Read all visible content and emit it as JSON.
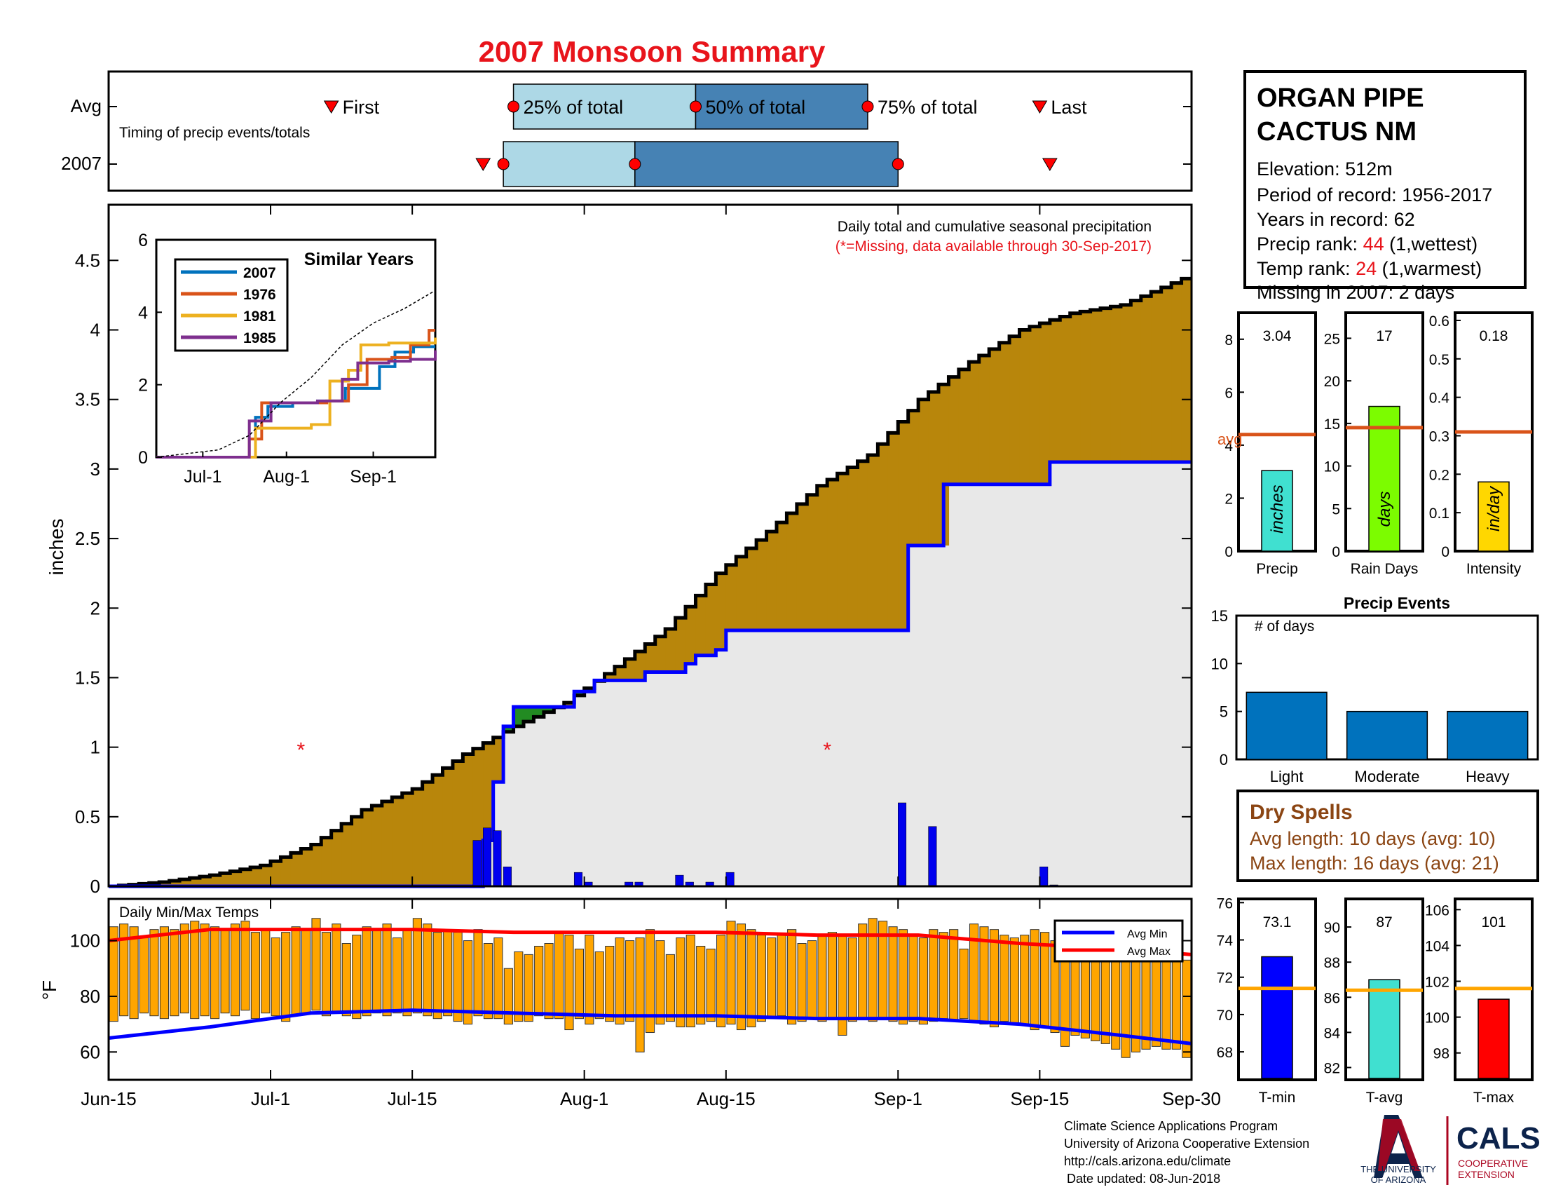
{
  "page": {
    "title": "2007 Monsoon Summary"
  },
  "timing_panel": {
    "row_avg_label": "Avg",
    "row_year_label": "2007",
    "subtitle": "Timing of precip events/totals",
    "markers_avg": {
      "first": "First",
      "p25": "25% of total",
      "p50": "50% of total",
      "p75": "75% of total",
      "last": "Last"
    },
    "x_range_days": [
      0,
      107
    ],
    "avg": {
      "first": 22,
      "p25": 40,
      "p50": 58,
      "p75": 75,
      "last": 92
    },
    "year": {
      "first": 37,
      "p25": 39,
      "p50": 52,
      "p75": 78,
      "last": 93
    }
  },
  "station": {
    "name_line1": "ORGAN PIPE",
    "name_line2": "CACTUS NM",
    "elevation": "Elevation: 512m",
    "period": "Period of record: 1956-2017",
    "years": "Years in record: 62",
    "precip_rank_label": "Precip rank: ",
    "precip_rank_value": "44",
    "precip_rank_note": " (1,wettest)",
    "temp_rank_label": "Temp rank: ",
    "temp_rank_value": "24",
    "temp_rank_note": " (1,warmest)",
    "missing": "Missing in 2007: 2 days"
  },
  "main_chart": {
    "title_line1": "Daily total and cumulative seasonal precipitation",
    "title_line2": "(*=Missing, data available through 30-Sep-2017)",
    "ylabel": "inches",
    "ylim": [
      0,
      4.9
    ],
    "yticks": [
      "0",
      "0.5",
      "1",
      "1.5",
      "2",
      "2.5",
      "3",
      "3.5",
      "4",
      "4.5"
    ],
    "missing_marker": "*"
  },
  "inset": {
    "title": "Similar Years",
    "yticks": [
      "0",
      "2",
      "4",
      "6"
    ],
    "xticks": [
      "Jul-1",
      "Aug-1",
      "Sep-1"
    ],
    "legend": [
      "2007",
      "1976",
      "1981",
      "1985"
    ],
    "colors": [
      "#0072BD",
      "#D95319",
      "#EDB120",
      "#7E2F8E"
    ]
  },
  "temp_chart": {
    "title": "Daily Min/Max Temps",
    "ylabel": "°F",
    "yticks": [
      "60",
      "80",
      "100"
    ],
    "legend_min": "Avg Min",
    "legend_max": "Avg Max"
  },
  "x_axis": {
    "ticks": [
      "Jun-15",
      "Jul-1",
      "Jul-15",
      "Aug-1",
      "Aug-15",
      "Sep-1",
      "Sep-15",
      "Sep-30"
    ]
  },
  "summary_bars": {
    "precip": {
      "label": "Precip",
      "value": "3.04",
      "unit": "inches",
      "avg": 4.4,
      "ylim": [
        0,
        9
      ],
      "yticks": [
        "0",
        "2",
        "4",
        "6",
        "8"
      ],
      "avg_label": "avg",
      "color": "#40E0D0"
    },
    "rain_days": {
      "label": "Rain Days",
      "value": "17",
      "unit": "days",
      "avg": 14.5,
      "ylim": [
        0,
        28
      ],
      "yticks": [
        "0",
        "5",
        "10",
        "15",
        "20",
        "25"
      ],
      "color": "#7CFC00"
    },
    "intensity": {
      "label": "Intensity",
      "value": "0.18",
      "unit": "in/day",
      "avg": 0.31,
      "ylim": [
        0,
        0.62
      ],
      "yticks": [
        "0",
        "0.1",
        "0.2",
        "0.3",
        "0.4",
        "0.5",
        "0.6"
      ],
      "color": "#FFD700"
    }
  },
  "precip_events": {
    "title": "Precip Events",
    "ylabel": "# of days",
    "categories": [
      "Light",
      "Moderate",
      "Heavy"
    ],
    "values": [
      7,
      5,
      5
    ],
    "yticks": [
      "0",
      "5",
      "10",
      "15"
    ]
  },
  "dry_spells": {
    "title": "Dry Spells",
    "avg_length": "Avg length: 10 days (avg: 10)",
    "max_length": "Max length: 16 days (avg: 21)"
  },
  "temp_bars": {
    "tmin": {
      "label": "T-min",
      "value": "73.1",
      "avg": 71.4,
      "ylim": [
        66.5,
        76.2
      ],
      "yticks": [
        "68",
        "70",
        "72",
        "74",
        "76"
      ],
      "color": "#0000FF"
    },
    "tavg": {
      "label": "T-avg",
      "value": "87",
      "avg": 86.4,
      "ylim": [
        81.3,
        91.6
      ],
      "yticks": [
        "82",
        "84",
        "86",
        "88",
        "90"
      ],
      "color": "#40E0D0"
    },
    "tmax": {
      "label": "T-max",
      "value": "101",
      "avg": 101.6,
      "ylim": [
        96.5,
        106.6
      ],
      "yticks": [
        "98",
        "100",
        "102",
        "104",
        "106"
      ],
      "color": "#FF0000"
    }
  },
  "footer": {
    "line1": "Climate Science Applications Program",
    "line2": "University of Arizona Cooperative Extension",
    "line3": "http://cals.arizona.edu/climate",
    "line4": "Date updated: 08-Jun-2018",
    "ua_logo_text1": "THE UNIVERSITY",
    "ua_logo_text2": "OF ARIZONA",
    "cals_logo": "CALS",
    "cals_sub1": "COOPERATIVE",
    "cals_sub2": "EXTENSION"
  },
  "chart_data": [
    {
      "type": "area",
      "name": "cumulative_precip",
      "x_unit": "days since Jun-15",
      "xlim": [
        0,
        107
      ],
      "ylim": [
        0,
        4.9
      ],
      "current_year_cumulative": [
        [
          0,
          0
        ],
        [
          16,
          0
        ],
        [
          36,
          0
        ],
        [
          37,
          0.33
        ],
        [
          38,
          0.75
        ],
        [
          39,
          1.15
        ],
        [
          40,
          1.29
        ],
        [
          45,
          1.29
        ],
        [
          46,
          1.4
        ],
        [
          48,
          1.48
        ],
        [
          52,
          1.48
        ],
        [
          53,
          1.54
        ],
        [
          56,
          1.54
        ],
        [
          57,
          1.6
        ],
        [
          58,
          1.66
        ],
        [
          60,
          1.7
        ],
        [
          61,
          1.84
        ],
        [
          78,
          1.84
        ],
        [
          79,
          2.45
        ],
        [
          82,
          2.45
        ],
        [
          82.5,
          2.89
        ],
        [
          92,
          2.89
        ],
        [
          93,
          3.05
        ],
        [
          107,
          3.05
        ]
      ],
      "average_cumulative": [
        [
          0,
          0
        ],
        [
          5,
          0.03
        ],
        [
          10,
          0.08
        ],
        [
          15,
          0.15
        ],
        [
          20,
          0.3
        ],
        [
          25,
          0.55
        ],
        [
          30,
          0.7
        ],
        [
          35,
          0.95
        ],
        [
          40,
          1.15
        ],
        [
          45,
          1.32
        ],
        [
          50,
          1.58
        ],
        [
          55,
          1.85
        ],
        [
          60,
          2.25
        ],
        [
          65,
          2.55
        ],
        [
          70,
          2.88
        ],
        [
          75,
          3.1
        ],
        [
          80,
          3.5
        ],
        [
          85,
          3.77
        ],
        [
          90,
          4.0
        ],
        [
          95,
          4.12
        ],
        [
          100,
          4.18
        ],
        [
          107,
          4.4
        ]
      ],
      "daily_precip": [
        [
          36,
          0.33
        ],
        [
          37,
          0.42
        ],
        [
          38,
          0.4
        ],
        [
          39,
          0.14
        ],
        [
          46,
          0.1
        ],
        [
          47,
          0.03
        ],
        [
          51,
          0.03
        ],
        [
          52,
          0.03
        ],
        [
          56,
          0.08
        ],
        [
          57,
          0.03
        ],
        [
          59,
          0.03
        ],
        [
          61,
          0.1
        ],
        [
          78,
          0.6
        ],
        [
          81,
          0.43
        ],
        [
          92,
          0.14
        ],
        [
          93,
          0.01
        ]
      ],
      "missing_days": [
        [
          19,
          1.0
        ],
        [
          71,
          1.0
        ]
      ],
      "colors": {
        "above_avg_fill": "#B8860B",
        "below_avg_fill": "#228B22",
        "current_line": "#0000FF",
        "daily_bars": "#0000EE",
        "background_fill": "#E8E8E8"
      }
    },
    {
      "type": "bar",
      "name": "daily_temps",
      "x_unit": "days since Jun-15",
      "ylim": [
        50,
        115
      ],
      "avg_max": [
        [
          0,
          100
        ],
        [
          10,
          104
        ],
        [
          20,
          104
        ],
        [
          30,
          104
        ],
        [
          40,
          103
        ],
        [
          50,
          103
        ],
        [
          60,
          103
        ],
        [
          70,
          102
        ],
        [
          80,
          102
        ],
        [
          90,
          99
        ],
        [
          100,
          97
        ],
        [
          107,
          95
        ]
      ],
      "avg_min": [
        [
          0,
          65
        ],
        [
          10,
          69
        ],
        [
          20,
          74
        ],
        [
          30,
          75
        ],
        [
          40,
          74
        ],
        [
          50,
          73
        ],
        [
          60,
          73
        ],
        [
          70,
          72
        ],
        [
          80,
          72
        ],
        [
          90,
          70
        ],
        [
          100,
          66
        ],
        [
          107,
          63
        ]
      ],
      "daily_max": [
        105,
        106,
        105,
        101,
        104,
        105,
        104,
        106,
        107,
        106,
        105,
        104,
        106,
        107,
        103,
        104,
        101,
        103,
        105,
        104,
        108,
        103,
        106,
        99,
        102,
        105,
        104,
        106,
        101,
        104,
        108,
        106,
        103,
        104,
        103,
        100,
        104,
        99,
        101,
        90,
        96,
        95,
        98,
        99,
        103,
        102,
        97,
        102,
        96,
        98,
        101,
        100,
        101,
        104,
        100,
        95,
        101,
        102,
        98,
        97,
        102,
        107,
        106,
        104,
        102,
        101,
        102,
        104,
        99,
        100,
        102,
        103,
        102,
        101,
        106,
        108,
        107,
        105,
        104,
        102,
        101,
        104,
        103,
        104,
        97,
        106,
        105,
        104,
        102,
        101,
        102,
        104,
        103,
        100,
        97,
        99,
        96,
        98,
        101,
        102,
        93,
        97,
        99,
        101,
        102,
        97,
        93
      ],
      "daily_min": [
        71,
        73,
        72,
        74,
        73,
        72,
        73,
        74,
        72,
        73,
        72,
        74,
        73,
        75,
        72,
        74,
        73,
        71,
        73,
        74,
        75,
        73,
        74,
        73,
        72,
        73,
        74,
        73,
        74,
        73,
        74,
        73,
        72,
        73,
        71,
        70,
        73,
        72,
        72,
        70,
        71,
        71,
        73,
        72,
        72,
        68,
        72,
        70,
        72,
        71,
        70,
        71,
        60,
        67,
        70,
        71,
        69,
        69,
        70,
        71,
        69,
        70,
        68,
        69,
        71,
        72,
        73,
        70,
        71,
        72,
        71,
        72,
        66,
        71,
        72,
        71,
        72,
        71,
        70,
        71,
        70,
        71,
        72,
        71,
        72,
        71,
        70,
        69,
        71,
        70,
        70,
        68,
        69,
        67,
        62,
        66,
        65,
        64,
        63,
        61,
        58,
        60,
        61,
        62,
        61,
        61,
        58
      ]
    },
    {
      "type": "bar",
      "name": "precip_events",
      "categories": [
        "Light",
        "Moderate",
        "Heavy"
      ],
      "values": [
        7,
        5,
        5
      ],
      "ylim": [
        0,
        15
      ]
    },
    {
      "type": "bar",
      "name": "summary_bars",
      "categories": [
        "Precip",
        "Rain Days",
        "Intensity"
      ],
      "values": [
        3.04,
        17,
        0.18
      ],
      "averages": [
        4.4,
        14.5,
        0.31
      ]
    },
    {
      "type": "bar",
      "name": "temp_summary",
      "categories": [
        "T-min",
        "T-avg",
        "T-max"
      ],
      "values": [
        73.1,
        87,
        101
      ],
      "averages": [
        71.4,
        86.4,
        101.6
      ]
    },
    {
      "type": "line",
      "name": "similar_years",
      "ylim": [
        0,
        6
      ],
      "series": [
        {
          "name": "2007",
          "values": [
            [
              0,
              0
            ],
            [
              2.5,
              0
            ],
            [
              3.2,
              1.1
            ],
            [
              3.6,
              1.4
            ],
            [
              4.4,
              1.5
            ],
            [
              5.2,
              1.55
            ],
            [
              6.1,
              1.9
            ],
            [
              7.2,
              2.5
            ],
            [
              7.7,
              2.9
            ],
            [
              8.3,
              3.05
            ],
            [
              9.0,
              3.05
            ]
          ]
        },
        {
          "name": "1976",
          "values": [
            [
              0,
              0
            ],
            [
              2.6,
              0
            ],
            [
              3.0,
              0.5
            ],
            [
              3.4,
              1.5
            ],
            [
              5.5,
              1.55
            ],
            [
              6.2,
              2.0
            ],
            [
              6.8,
              2.7
            ],
            [
              7.6,
              2.75
            ],
            [
              8.2,
              3.1
            ],
            [
              8.8,
              3.5
            ],
            [
              9.0,
              3.5
            ]
          ]
        },
        {
          "name": "1981",
          "values": [
            [
              0,
              0
            ],
            [
              2.4,
              0
            ],
            [
              3.2,
              0.8
            ],
            [
              5.0,
              0.9
            ],
            [
              5.6,
              2.1
            ],
            [
              6.2,
              2.4
            ],
            [
              6.6,
              3.1
            ],
            [
              7.5,
              3.15
            ],
            [
              8.3,
              3.15
            ],
            [
              9.0,
              3.3
            ]
          ]
        },
        {
          "name": "1985",
          "values": [
            [
              0,
              0
            ],
            [
              2.8,
              0
            ],
            [
              3.0,
              1.0
            ],
            [
              3.7,
              1.5
            ],
            [
              5.2,
              1.55
            ],
            [
              6.0,
              2.15
            ],
            [
              6.5,
              2.6
            ],
            [
              7.5,
              2.65
            ],
            [
              8.2,
              2.7
            ],
            [
              9.0,
              2.95
            ]
          ]
        },
        {
          "name": "average",
          "values": [
            [
              0,
              0
            ],
            [
              2.0,
              0.2
            ],
            [
              3.0,
              0.6
            ],
            [
              4.0,
              1.5
            ],
            [
              5.0,
              2.2
            ],
            [
              6.0,
              3.1
            ],
            [
              7.0,
              3.7
            ],
            [
              8.0,
              4.1
            ],
            [
              9.0,
              4.6
            ]
          ]
        }
      ]
    }
  ]
}
